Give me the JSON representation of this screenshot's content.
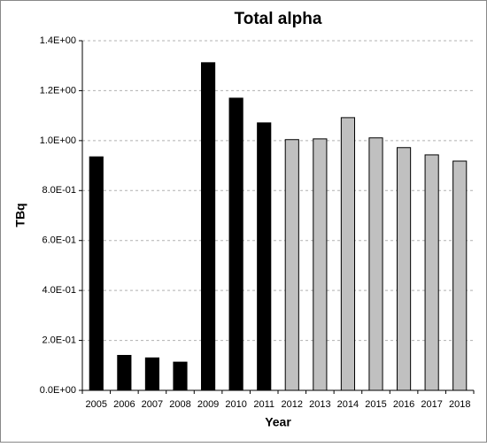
{
  "chart_data": {
    "type": "bar",
    "title": "Total alpha",
    "x_label": "Year",
    "y_label": "TBq",
    "categories": [
      "2005",
      "2006",
      "2007",
      "2008",
      "2009",
      "2010",
      "2011",
      "2012",
      "2013",
      "2014",
      "2015",
      "2016",
      "2017",
      "2018"
    ],
    "values": [
      0.935,
      0.14,
      0.13,
      0.113,
      1.312,
      1.17,
      1.071,
      1.004,
      1.007,
      1.092,
      1.011,
      0.972,
      0.943,
      0.918
    ],
    "colors": [
      "#000000",
      "#000000",
      "#000000",
      "#000000",
      "#000000",
      "#000000",
      "#000000",
      "#c0c0c0",
      "#c0c0c0",
      "#c0c0c0",
      "#c0c0c0",
      "#c0c0c0",
      "#c0c0c0",
      "#c0c0c0"
    ],
    "ylim": [
      0,
      1.4
    ],
    "yticks": [
      {
        "value": 0,
        "label": "0.0E+00"
      },
      {
        "value": 0.2,
        "label": "2.0E-01"
      },
      {
        "value": 0.4,
        "label": "4.0E-01"
      },
      {
        "value": 0.6,
        "label": "6.0E-01"
      },
      {
        "value": 0.8,
        "label": "8.0E-01"
      },
      {
        "value": 1.0,
        "label": "1.0E+00"
      },
      {
        "value": 1.2,
        "label": "1.2E+00"
      },
      {
        "value": 1.4,
        "label": "1.4E+00"
      }
    ],
    "grid": true
  }
}
